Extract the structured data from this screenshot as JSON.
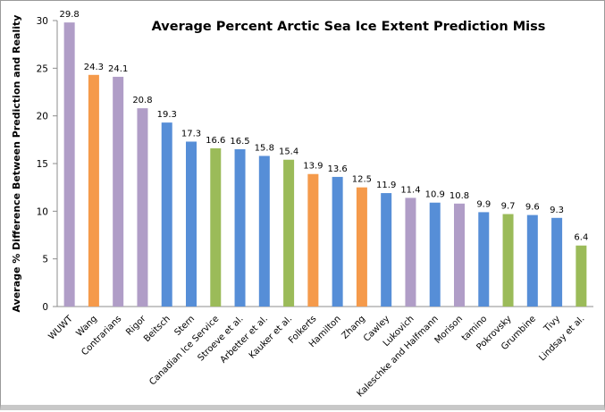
{
  "chart_data": {
    "type": "bar",
    "title": "Average Percent Arctic Sea Ice Extent Prediction Miss",
    "xlabel": "",
    "ylabel": "Average % Difference Between Prediction and Reality",
    "ylim": [
      0,
      30
    ],
    "yticks": [
      0,
      5,
      10,
      15,
      20,
      25,
      30
    ],
    "grid": false,
    "legend": "none",
    "categories": [
      "WUWT",
      "Wang",
      "Contrarians",
      "Rigor",
      "Beitsch",
      "Stern",
      "Canadian Ice Service",
      "Stroeve et al.",
      "Arbetter et al.",
      "Kauker et al.",
      "Folkerts",
      "Hamilton",
      "Zhang",
      "Cawley",
      "Lukovich",
      "Kaleschke and Halfmann",
      "Morison",
      "tamino",
      "Pokrovsky",
      "Grumbine",
      "Tivy",
      "Lindsay et al."
    ],
    "values": [
      29.8,
      24.3,
      24.1,
      20.8,
      19.3,
      17.3,
      16.6,
      16.5,
      15.8,
      15.4,
      13.9,
      13.6,
      12.5,
      11.9,
      11.4,
      10.9,
      10.8,
      9.9,
      9.7,
      9.6,
      9.3,
      6.4
    ],
    "data_labels": [
      "29.8",
      "24.3",
      "24.1",
      "20.8",
      "19.3",
      "17.3",
      "16.6",
      "16.5",
      "15.8",
      "15.4",
      "13.9",
      "13.6",
      "12.5",
      "11.9",
      "11.4",
      "10.9",
      "10.8",
      "9.9",
      "9.7",
      "9.6",
      "9.3",
      "6.4"
    ],
    "bar_colors": [
      "#b09dc7",
      "#f59a4b",
      "#b09dc7",
      "#b09dc7",
      "#568ed7",
      "#568ed7",
      "#9bbb59",
      "#568ed7",
      "#568ed7",
      "#9bbb59",
      "#f59a4b",
      "#568ed7",
      "#f59a4b",
      "#568ed7",
      "#b09dc7",
      "#568ed7",
      "#b09dc7",
      "#568ed7",
      "#9bbb59",
      "#568ed7",
      "#568ed7",
      "#9bbb59"
    ]
  }
}
